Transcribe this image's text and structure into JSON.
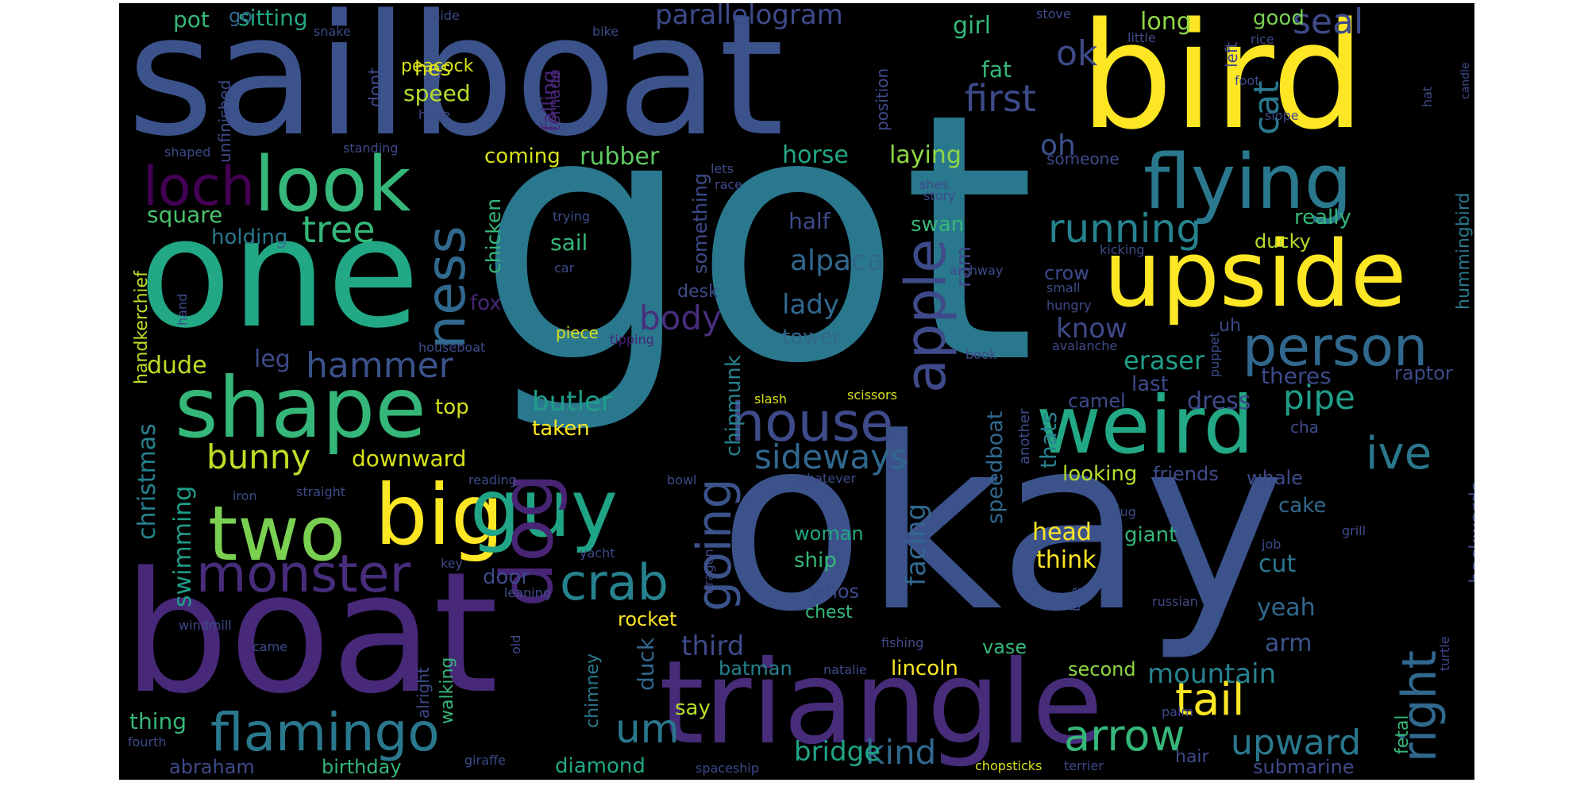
{
  "chart_data": {
    "type": "wordcloud",
    "background": "#000000",
    "colormap": "viridis",
    "words": [
      {
        "text": "got",
        "weight": 1.0,
        "color": "#2a788e"
      },
      {
        "text": "okay",
        "weight": 0.98,
        "color": "#3b528b"
      },
      {
        "text": "sailboat",
        "weight": 0.6,
        "color": "#3b528b"
      },
      {
        "text": "one",
        "weight": 0.59,
        "color": "#22a884"
      },
      {
        "text": "boat",
        "weight": 0.62,
        "color": "#482878"
      },
      {
        "text": "bird",
        "weight": 0.52,
        "color": "#fde725"
      },
      {
        "text": "triangle",
        "weight": 0.42,
        "color": "#472c7a"
      },
      {
        "text": "upside",
        "weight": 0.36,
        "color": "#fde725"
      },
      {
        "text": "flying",
        "weight": 0.3,
        "color": "#2a788e"
      },
      {
        "text": "look",
        "weight": 0.3,
        "color": "#35b779"
      },
      {
        "text": "shape",
        "weight": 0.31,
        "color": "#35b779"
      },
      {
        "text": "big",
        "weight": 0.3,
        "color": "#fde725"
      },
      {
        "text": "two",
        "weight": 0.28,
        "color": "#7ad151"
      },
      {
        "text": "guy",
        "weight": 0.3,
        "color": "#20a486"
      },
      {
        "text": "weird",
        "weight": 0.3,
        "color": "#22a884"
      },
      {
        "text": "dog",
        "weight": 0.27,
        "color": "#482475"
      },
      {
        "text": "apple",
        "weight": 0.22,
        "color": "#3e4a89"
      },
      {
        "text": "person",
        "weight": 0.21,
        "color": "#31688e"
      },
      {
        "text": "house",
        "weight": 0.2,
        "color": "#3e4a89"
      },
      {
        "text": "ness",
        "weight": 0.2,
        "color": "#31688e"
      },
      {
        "text": "loch",
        "weight": 0.2,
        "color": "#440154"
      },
      {
        "text": "flamingo",
        "weight": 0.2,
        "color": "#2a788e"
      },
      {
        "text": "monster",
        "weight": 0.19,
        "color": "#472d7b"
      },
      {
        "text": "crab",
        "weight": 0.18,
        "color": "#26828e"
      },
      {
        "text": "going",
        "weight": 0.18,
        "color": "#3b528b"
      },
      {
        "text": "right",
        "weight": 0.18,
        "color": "#31688e"
      },
      {
        "text": "ive",
        "weight": 0.16,
        "color": "#2a788e"
      },
      {
        "text": "tail",
        "weight": 0.16,
        "color": "#fde725"
      },
      {
        "text": "arrow",
        "weight": 0.16,
        "color": "#35b779"
      },
      {
        "text": "running",
        "weight": 0.15,
        "color": "#26828e"
      },
      {
        "text": "first",
        "weight": 0.14,
        "color": "#3e4a89"
      },
      {
        "text": "um",
        "weight": 0.15,
        "color": "#2a788e"
      },
      {
        "text": "upward",
        "weight": 0.13,
        "color": "#2a788e"
      },
      {
        "text": "tree",
        "weight": 0.14,
        "color": "#35b779"
      },
      {
        "text": "hammer",
        "weight": 0.13,
        "color": "#3b528b"
      },
      {
        "text": "ok",
        "weight": 0.13,
        "color": "#3e4a89"
      },
      {
        "text": "cat",
        "weight": 0.13,
        "color": "#2a788e"
      },
      {
        "text": "seal",
        "weight": 0.13,
        "color": "#3e4a89"
      },
      {
        "text": "kind",
        "weight": 0.13,
        "color": "#31688e"
      },
      {
        "text": "sideways",
        "weight": 0.13,
        "color": "#31688e"
      },
      {
        "text": "bunny",
        "weight": 0.13,
        "color": "#bddf26"
      },
      {
        "text": "body",
        "weight": 0.13,
        "color": "#472d7b"
      },
      {
        "text": "pipe",
        "weight": 0.13,
        "color": "#1f9e89"
      },
      {
        "text": "oh",
        "weight": 0.1,
        "color": "#3b528b"
      },
      {
        "text": "parallelogram",
        "weight": 0.1,
        "color": "#3e4a89"
      },
      {
        "text": "alpaca",
        "weight": 0.1,
        "color": "#31688e"
      },
      {
        "text": "bridge",
        "weight": 0.1,
        "color": "#20a486"
      },
      {
        "text": "mountain",
        "weight": 0.1,
        "color": "#26828e"
      },
      {
        "text": "know",
        "weight": 0.1,
        "color": "#3e4a89"
      },
      {
        "text": "lady",
        "weight": 0.1,
        "color": "#31688e"
      },
      {
        "text": "facing",
        "weight": 0.1,
        "color": "#31688e"
      },
      {
        "text": "butler",
        "weight": 0.1,
        "color": "#1f9e89"
      },
      {
        "text": "third",
        "weight": 0.1,
        "color": "#3e4a89"
      },
      {
        "text": "eraser",
        "weight": 0.09,
        "color": "#1f9e89"
      },
      {
        "text": "christmas",
        "weight": 0.09,
        "color": "#26828e"
      },
      {
        "text": "swimming",
        "weight": 0.09,
        "color": "#1f9e89"
      },
      {
        "text": "horse",
        "weight": 0.09,
        "color": "#22a884"
      },
      {
        "text": "laying",
        "weight": 0.09,
        "color": "#8fd744"
      },
      {
        "text": "rubber",
        "weight": 0.09,
        "color": "#5ec962"
      },
      {
        "text": "square",
        "weight": 0.09,
        "color": "#4ac16d"
      },
      {
        "text": "head",
        "weight": 0.09,
        "color": "#fde725"
      },
      {
        "text": "think",
        "weight": 0.09,
        "color": "#fde725"
      },
      {
        "text": "cut",
        "weight": 0.09,
        "color": "#2a788e"
      },
      {
        "text": "yeah",
        "weight": 0.09,
        "color": "#31688e"
      },
      {
        "text": "arm",
        "weight": 0.09,
        "color": "#3b528b"
      },
      {
        "text": "dude",
        "weight": 0.09,
        "color": "#bddf26"
      },
      {
        "text": "leg",
        "weight": 0.09,
        "color": "#3e4a89"
      },
      {
        "text": "downward",
        "weight": 0.09,
        "color": "#d8e219"
      },
      {
        "text": "theres",
        "weight": 0.09,
        "color": "#3e4a89"
      },
      {
        "text": "dress",
        "weight": 0.09,
        "color": "#3e4a89"
      },
      {
        "text": "thats",
        "weight": 0.09,
        "color": "#26828e"
      },
      {
        "text": "speedboat",
        "weight": 0.08,
        "color": "#31688e"
      },
      {
        "text": "chipmunk",
        "weight": 0.08,
        "color": "#26828e"
      },
      {
        "text": "chicken",
        "weight": 0.08,
        "color": "#35b779"
      },
      {
        "text": "falling",
        "weight": 0.08,
        "color": "#482475"
      },
      {
        "text": "something",
        "weight": 0.08,
        "color": "#3e4a89"
      },
      {
        "text": "hummingbird",
        "weight": 0.07,
        "color": "#2a788e"
      },
      {
        "text": "long",
        "weight": 0.07,
        "color": "#8fd744"
      },
      {
        "text": "good",
        "weight": 0.06,
        "color": "#7ad151"
      },
      {
        "text": "sitting",
        "weight": 0.07,
        "color": "#22a884"
      },
      {
        "text": "pot",
        "weight": 0.07,
        "color": "#35b779"
      },
      {
        "text": "go",
        "weight": 0.06,
        "color": "#31688e"
      },
      {
        "text": "girl",
        "weight": 0.07,
        "color": "#35b779"
      },
      {
        "text": "speed",
        "weight": 0.07,
        "color": "#b5de2b"
      },
      {
        "text": "hes",
        "weight": 0.06,
        "color": "#d8e219"
      },
      {
        "text": "fat",
        "weight": 0.06,
        "color": "#35b779"
      },
      {
        "text": "coming",
        "weight": 0.06,
        "color": "#d8e219"
      },
      {
        "text": "holding",
        "weight": 0.06,
        "color": "#2a788e"
      },
      {
        "text": "half",
        "weight": 0.06,
        "color": "#3e4a89"
      },
      {
        "text": "swan",
        "weight": 0.06,
        "color": "#35b779"
      },
      {
        "text": "really",
        "weight": 0.06,
        "color": "#35b779"
      },
      {
        "text": "sail",
        "weight": 0.06,
        "color": "#35b779"
      },
      {
        "text": "ducky",
        "weight": 0.05,
        "color": "#b5de2b"
      },
      {
        "text": "ram",
        "weight": 0.05,
        "color": "#3e4a89"
      },
      {
        "text": "crow",
        "weight": 0.05,
        "color": "#3e4a89"
      },
      {
        "text": "fox",
        "weight": 0.05,
        "color": "#482878"
      },
      {
        "text": "tower",
        "weight": 0.05,
        "color": "#31688e"
      },
      {
        "text": "last",
        "weight": 0.05,
        "color": "#3e4a89"
      },
      {
        "text": "camel",
        "weight": 0.05,
        "color": "#3e4a89"
      },
      {
        "text": "raptor",
        "weight": 0.05,
        "color": "#3e4a89"
      },
      {
        "text": "top",
        "weight": 0.05,
        "color": "#d8e219"
      },
      {
        "text": "taken",
        "weight": 0.05,
        "color": "#fde725"
      },
      {
        "text": "cake",
        "weight": 0.05,
        "color": "#31688e"
      },
      {
        "text": "whale",
        "weight": 0.05,
        "color": "#3e4a89"
      },
      {
        "text": "looking",
        "weight": 0.05,
        "color": "#b5de2b"
      },
      {
        "text": "friends",
        "weight": 0.05,
        "color": "#3e4a89"
      },
      {
        "text": "giant",
        "weight": 0.05,
        "color": "#35b779"
      },
      {
        "text": "door",
        "weight": 0.05,
        "color": "#3e4a89"
      },
      {
        "text": "ship",
        "weight": 0.05,
        "color": "#35b779"
      },
      {
        "text": "woman",
        "weight": 0.05,
        "color": "#22a884"
      },
      {
        "text": "whos",
        "weight": 0.05,
        "color": "#3e4a89"
      },
      {
        "text": "rocket",
        "weight": 0.05,
        "color": "#fde725"
      },
      {
        "text": "duck",
        "weight": 0.05,
        "color": "#31688e"
      },
      {
        "text": "say",
        "weight": 0.05,
        "color": "#b5de2b"
      },
      {
        "text": "batman",
        "weight": 0.05,
        "color": "#26828e"
      },
      {
        "text": "lincoln",
        "weight": 0.05,
        "color": "#fde725"
      },
      {
        "text": "second",
        "weight": 0.05,
        "color": "#8fd744"
      },
      {
        "text": "thing",
        "weight": 0.05,
        "color": "#35b779"
      },
      {
        "text": "abraham",
        "weight": 0.05,
        "color": "#3e4a89"
      },
      {
        "text": "birthday",
        "weight": 0.05,
        "color": "#35b779"
      },
      {
        "text": "diamond",
        "weight": 0.05,
        "color": "#22a884"
      },
      {
        "text": "submarine",
        "weight": 0.05,
        "color": "#3e4a89"
      },
      {
        "text": "backwards",
        "weight": 0.05,
        "color": "#3e4a89"
      },
      {
        "text": "handkerchief",
        "weight": 0.05,
        "color": "#bddf26"
      },
      {
        "text": "walking",
        "weight": 0.04,
        "color": "#35b779"
      },
      {
        "text": "chimney",
        "weight": 0.04,
        "color": "#2a788e"
      },
      {
        "text": "vase",
        "weight": 0.04,
        "color": "#35b779"
      },
      {
        "text": "hair",
        "weight": 0.04,
        "color": "#3e4a89"
      },
      {
        "text": "fetal",
        "weight": 0.04,
        "color": "#35b779"
      },
      {
        "text": "peacock",
        "weight": 0.04,
        "color": "#d8e219"
      },
      {
        "text": "dont",
        "weight": 0.04,
        "color": "#3e4a89"
      },
      {
        "text": "tornado",
        "weight": 0.04,
        "color": "#482878"
      },
      {
        "text": "unfinished",
        "weight": 0.04,
        "color": "#3e4a89"
      },
      {
        "text": "position",
        "weight": 0.04,
        "color": "#3e4a89"
      },
      {
        "text": "someone",
        "weight": 0.04,
        "color": "#3e4a89"
      },
      {
        "text": "left",
        "weight": 0.04,
        "color": "#3e4a89"
      },
      {
        "text": "alright",
        "weight": 0.04,
        "color": "#3e4a89"
      },
      {
        "text": "uh",
        "weight": 0.04,
        "color": "#3e4a89"
      },
      {
        "text": "desk",
        "weight": 0.04,
        "color": "#3e4a89"
      },
      {
        "text": "chest",
        "weight": 0.04,
        "color": "#35b779"
      },
      {
        "text": "another",
        "weight": 0.04,
        "color": "#3e4a89"
      },
      {
        "text": "cha",
        "weight": 0.04,
        "color": "#3e4a89"
      },
      {
        "text": "piece",
        "weight": 0.04,
        "color": "#d8e219"
      },
      {
        "text": "stove",
        "weight": 0.03,
        "color": "#3e4a89"
      },
      {
        "text": "side",
        "weight": 0.03,
        "color": "#3e4a89"
      },
      {
        "text": "snake",
        "weight": 0.03,
        "color": "#3e4a89"
      },
      {
        "text": "bike",
        "weight": 0.03,
        "color": "#3e4a89"
      },
      {
        "text": "little",
        "weight": 0.03,
        "color": "#3e4a89"
      },
      {
        "text": "rice",
        "weight": 0.03,
        "color": "#3e4a89"
      },
      {
        "text": "huge",
        "weight": 0.03,
        "color": "#3e4a89"
      },
      {
        "text": "foot",
        "weight": 0.03,
        "color": "#3e4a89"
      },
      {
        "text": "slope",
        "weight": 0.03,
        "color": "#3e4a89"
      },
      {
        "text": "candle",
        "weight": 0.03,
        "color": "#3e4a89"
      },
      {
        "text": "hat",
        "weight": 0.03,
        "color": "#3e4a89"
      },
      {
        "text": "shaped",
        "weight": 0.03,
        "color": "#3e4a89"
      },
      {
        "text": "standing",
        "weight": 0.03,
        "color": "#3e4a89"
      },
      {
        "text": "lets",
        "weight": 0.03,
        "color": "#3e4a89"
      },
      {
        "text": "race",
        "weight": 0.03,
        "color": "#3e4a89"
      },
      {
        "text": "shes",
        "weight": 0.03,
        "color": "#3e4a89"
      },
      {
        "text": "story",
        "weight": 0.03,
        "color": "#3e4a89"
      },
      {
        "text": "trying",
        "weight": 0.03,
        "color": "#3e4a89"
      },
      {
        "text": "kicking",
        "weight": 0.03,
        "color": "#3e4a89"
      },
      {
        "text": "car",
        "weight": 0.03,
        "color": "#3e4a89"
      },
      {
        "text": "archway",
        "weight": 0.03,
        "color": "#3e4a89"
      },
      {
        "text": "small",
        "weight": 0.03,
        "color": "#3e4a89"
      },
      {
        "text": "hungry",
        "weight": 0.03,
        "color": "#3e4a89"
      },
      {
        "text": "hand",
        "weight": 0.03,
        "color": "#3e4a89"
      },
      {
        "text": "tipping",
        "weight": 0.03,
        "color": "#482475"
      },
      {
        "text": "houseboat",
        "weight": 0.03,
        "color": "#3e4a89"
      },
      {
        "text": "book",
        "weight": 0.03,
        "color": "#3e4a89"
      },
      {
        "text": "avalanche",
        "weight": 0.03,
        "color": "#3e4a89"
      },
      {
        "text": "puppet",
        "weight": 0.03,
        "color": "#3e4a89"
      },
      {
        "text": "slash",
        "weight": 0.03,
        "color": "#d8e219"
      },
      {
        "text": "scissors",
        "weight": 0.03,
        "color": "#d8e219"
      },
      {
        "text": "reading",
        "weight": 0.03,
        "color": "#3e4a89"
      },
      {
        "text": "iron",
        "weight": 0.03,
        "color": "#3e4a89"
      },
      {
        "text": "straight",
        "weight": 0.03,
        "color": "#3e4a89"
      },
      {
        "text": "bowl",
        "weight": 0.03,
        "color": "#3e4a89"
      },
      {
        "text": "whatever",
        "weight": 0.03,
        "color": "#3e4a89"
      },
      {
        "text": "jug",
        "weight": 0.03,
        "color": "#3e4a89"
      },
      {
        "text": "grill",
        "weight": 0.03,
        "color": "#3e4a89"
      },
      {
        "text": "key",
        "weight": 0.03,
        "color": "#3e4a89"
      },
      {
        "text": "yacht",
        "weight": 0.03,
        "color": "#3e4a89"
      },
      {
        "text": "dragon",
        "weight": 0.03,
        "color": "#3e4a89"
      },
      {
        "text": "job",
        "weight": 0.03,
        "color": "#3e4a89"
      },
      {
        "text": "bite",
        "weight": 0.03,
        "color": "#3e4a89"
      },
      {
        "text": "windmill",
        "weight": 0.03,
        "color": "#3e4a89"
      },
      {
        "text": "leaning",
        "weight": 0.03,
        "color": "#3e4a89"
      },
      {
        "text": "russian",
        "weight": 0.03,
        "color": "#3e4a89"
      },
      {
        "text": "came",
        "weight": 0.03,
        "color": "#3e4a89"
      },
      {
        "text": "old",
        "weight": 0.03,
        "color": "#3e4a89"
      },
      {
        "text": "fishing",
        "weight": 0.03,
        "color": "#3e4a89"
      },
      {
        "text": "palm",
        "weight": 0.03,
        "color": "#3e4a89"
      },
      {
        "text": "turtle",
        "weight": 0.03,
        "color": "#3e4a89"
      },
      {
        "text": "natalie",
        "weight": 0.03,
        "color": "#3e4a89"
      },
      {
        "text": "fourth",
        "weight": 0.03,
        "color": "#3e4a89"
      },
      {
        "text": "giraffe",
        "weight": 0.03,
        "color": "#3e4a89"
      },
      {
        "text": "spaceship",
        "weight": 0.03,
        "color": "#3e4a89"
      },
      {
        "text": "chopsticks",
        "weight": 0.03,
        "color": "#d8e219"
      },
      {
        "text": "terrier",
        "weight": 0.03,
        "color": "#3e4a89"
      }
    ]
  }
}
